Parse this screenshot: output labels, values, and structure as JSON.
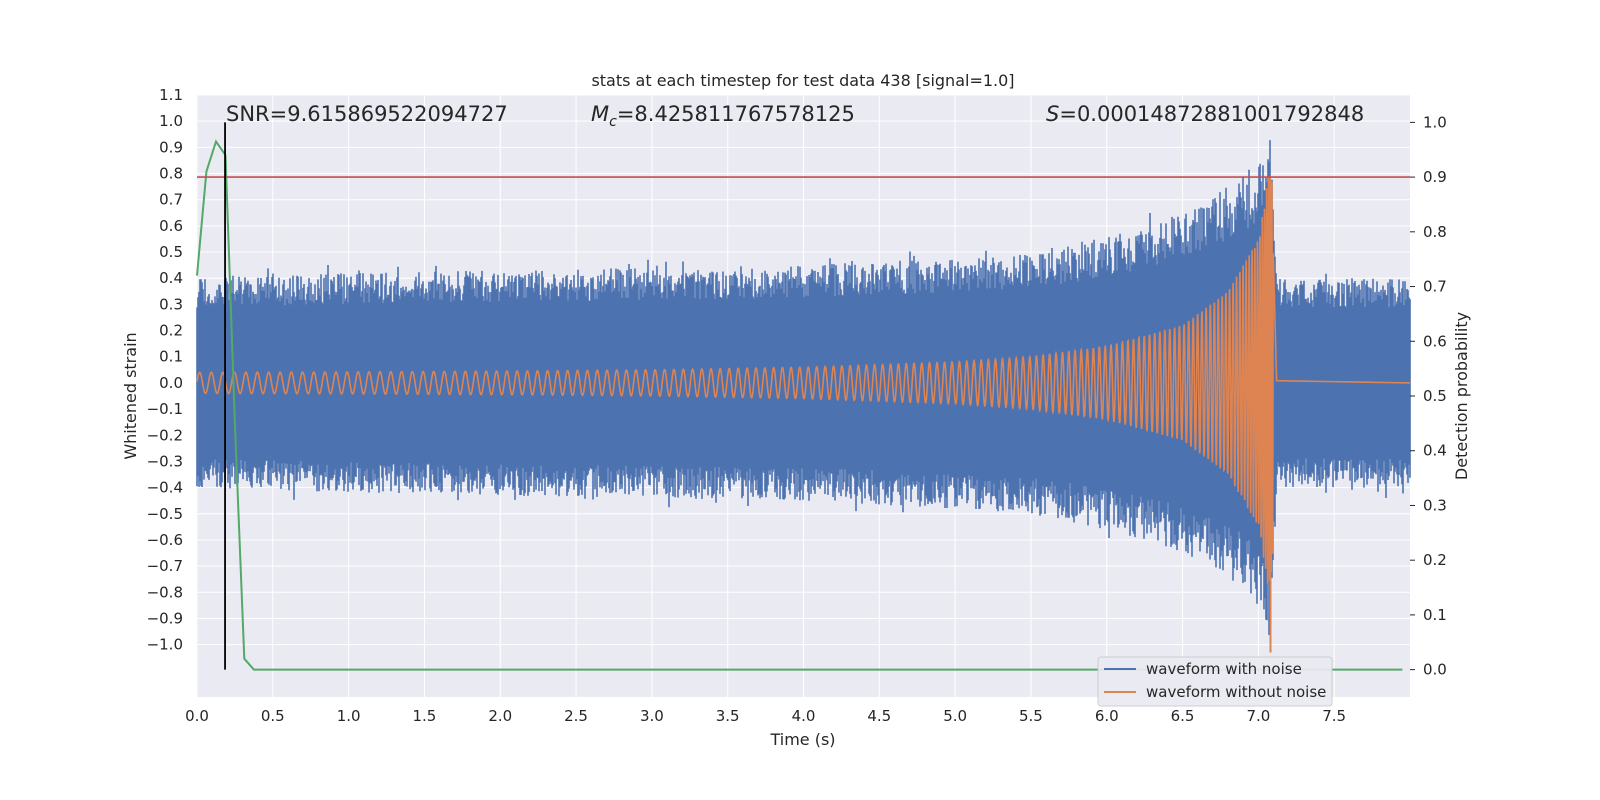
{
  "chart_data": {
    "type": "line",
    "title": "stats at each timestep for test data 438 [signal=1.0]",
    "xlabel": "Time (s)",
    "ylabel_left": "Whitened strain",
    "ylabel_right": "Detection probability",
    "xlim": [
      0.0,
      8.0
    ],
    "ylim_left": [
      -1.2,
      1.1
    ],
    "ylim_right": [
      -0.05,
      1.05
    ],
    "x_ticks": [
      "0.0",
      "0.5",
      "1.0",
      "1.5",
      "2.0",
      "2.5",
      "3.0",
      "3.5",
      "4.0",
      "4.5",
      "5.0",
      "5.5",
      "6.0",
      "6.5",
      "7.0",
      "7.5"
    ],
    "y_left_ticks": [
      "1.1",
      "1.0",
      "0.9",
      "0.8",
      "0.7",
      "0.6",
      "0.5",
      "0.4",
      "0.3",
      "0.2",
      "0.1",
      "0.0",
      "−0.1",
      "−0.2",
      "−0.3",
      "−0.4",
      "−0.5",
      "−0.6",
      "−0.7",
      "−0.8",
      "−0.9",
      "−1.0"
    ],
    "y_right_ticks": [
      "1.0",
      "0.9",
      "0.8",
      "0.7",
      "0.6",
      "0.5",
      "0.4",
      "0.3",
      "0.2",
      "0.1",
      "0.0"
    ],
    "grid": true,
    "legend_position": "lower-right",
    "series": [
      {
        "name": "waveform with noise",
        "axis": "left",
        "color": "#4c72b0",
        "description_points": [
          {
            "t": 0.0,
            "amp": 0.4
          },
          {
            "t": 1.0,
            "amp": 0.42
          },
          {
            "t": 2.0,
            "amp": 0.43
          },
          {
            "t": 3.0,
            "amp": 0.44
          },
          {
            "t": 4.0,
            "amp": 0.45
          },
          {
            "t": 5.0,
            "amp": 0.48
          },
          {
            "t": 5.5,
            "amp": 0.5
          },
          {
            "t": 6.0,
            "amp": 0.56
          },
          {
            "t": 6.5,
            "amp": 0.65
          },
          {
            "t": 6.8,
            "amp": 0.75
          },
          {
            "t": 7.0,
            "amp": 0.85
          },
          {
            "t": 7.08,
            "amp": 1.0
          },
          {
            "t": 7.12,
            "amp": 0.4
          },
          {
            "t": 8.0,
            "amp": 0.4
          }
        ]
      },
      {
        "name": "waveform without noise",
        "axis": "left",
        "color": "#dd8452",
        "envelope": [
          {
            "t": 0.0,
            "amp": 0.04
          },
          {
            "t": 1.0,
            "amp": 0.042
          },
          {
            "t": 2.0,
            "amp": 0.045
          },
          {
            "t": 3.0,
            "amp": 0.05
          },
          {
            "t": 4.0,
            "amp": 0.06
          },
          {
            "t": 5.0,
            "amp": 0.08
          },
          {
            "t": 5.5,
            "amp": 0.1
          },
          {
            "t": 6.0,
            "amp": 0.14
          },
          {
            "t": 6.5,
            "amp": 0.22
          },
          {
            "t": 6.8,
            "amp": 0.35
          },
          {
            "t": 7.0,
            "amp": 0.55
          },
          {
            "t": 7.07,
            "amp": 0.8
          },
          {
            "t": 7.09,
            "amp": 0.8
          },
          {
            "t": 7.12,
            "amp": 0.01
          },
          {
            "t": 8.0,
            "amp": 0.0
          }
        ]
      },
      {
        "name": "detection probability",
        "axis": "right",
        "color": "#55a868",
        "x": [
          0.0,
          0.062,
          0.125,
          0.188,
          0.25,
          0.312,
          0.375,
          0.5,
          1.0,
          2.0,
          3.0,
          4.0,
          5.0,
          6.0,
          7.0,
          7.5,
          7.95
        ],
        "y": [
          0.72,
          0.91,
          0.965,
          0.94,
          0.45,
          0.02,
          0.0,
          0.0,
          0.0,
          0.0,
          0.0,
          0.0,
          0.0,
          0.0,
          0.0,
          0.0,
          0.0
        ]
      }
    ],
    "threshold_line": {
      "axis": "right",
      "value": 0.9,
      "color": "#c44e52"
    },
    "vertical_line": {
      "x": 0.185,
      "y_from_right": 0.0,
      "y_to_right": 1.0,
      "color": "#000000"
    },
    "annotations": {
      "snr": "SNR=9.615869522094727",
      "mc_symbol": "M",
      "mc_sub": "c",
      "mc_value": "=8.425811767578125",
      "s_symbol": "S",
      "s_value": "=0.00014872881001792848"
    },
    "legend": [
      {
        "label": "waveform with noise",
        "color": "#4c72b0"
      },
      {
        "label": "waveform without noise",
        "color": "#dd8452"
      }
    ],
    "colors": {
      "plot_background": "#eaeaf2",
      "grid": "#ffffff"
    }
  }
}
